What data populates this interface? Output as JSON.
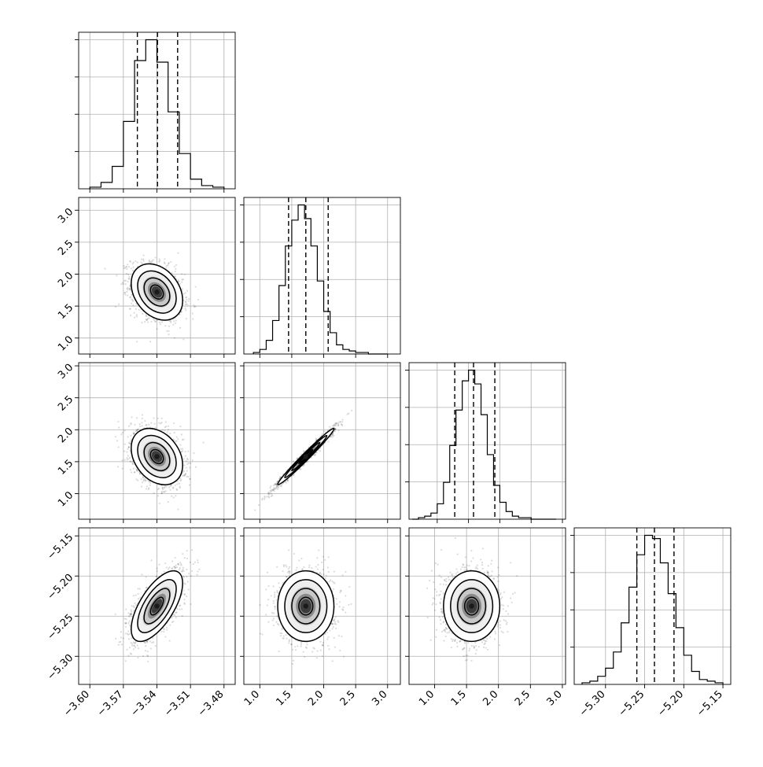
{
  "figure": {
    "dims": 4,
    "gridlines": true,
    "colors": {
      "line": "#000000",
      "grid": "#b0b0b0",
      "scatter": "#000000",
      "fill_light": "#ffffff",
      "fill_dark": "#1a1a1a"
    }
  },
  "chart_data": [
    {
      "id": "hist-p1",
      "type": "histogram",
      "xlim": [
        -3.61,
        -3.47
      ],
      "xticks": [
        -3.6,
        -3.57,
        -3.54,
        -3.51,
        -3.48
      ],
      "xtick_labels": [
        "−3.60",
        "−3.57",
        "−3.54",
        "−3.51",
        "−3.48"
      ],
      "bin_edges": [
        -3.6,
        -3.59,
        -3.58,
        -3.57,
        -3.56,
        -3.55,
        -3.54,
        -3.53,
        -3.52,
        -3.51,
        -3.5,
        -3.49,
        -3.48
      ],
      "counts": [
        1,
        4,
        14,
        42,
        80,
        93,
        79,
        48,
        22,
        6,
        2,
        1
      ],
      "quantile_lines": [
        -3.5575,
        -3.5395,
        -3.5215
      ]
    },
    {
      "id": "hist-p2",
      "type": "histogram",
      "xlim": [
        0.75,
        3.2
      ],
      "xticks": [
        1.0,
        1.5,
        2.0,
        2.5,
        3.0
      ],
      "xtick_labels": [
        "1.0",
        "1.5",
        "2.0",
        "2.5",
        "3.0"
      ],
      "bin_edges": [
        0.9,
        1.0,
        1.1,
        1.2,
        1.3,
        1.4,
        1.5,
        1.6,
        1.7,
        1.8,
        1.9,
        2.0,
        2.1,
        2.2,
        2.3,
        2.4,
        2.5,
        2.6,
        2.7,
        2.8,
        2.9,
        3.0
      ],
      "counts": [
        1,
        3,
        9,
        22,
        45,
        71,
        88,
        98,
        89,
        71,
        48,
        28,
        14,
        6,
        3,
        2,
        1,
        1,
        0,
        0,
        0
      ],
      "quantile_lines": [
        1.45,
        1.72,
        2.07
      ]
    },
    {
      "id": "hist-p3",
      "type": "histogram",
      "xlim": [
        0.55,
        3.05
      ],
      "xticks": [
        1.0,
        1.5,
        2.0,
        2.5,
        3.0
      ],
      "xtick_labels": [
        "1.0",
        "1.5",
        "2.0",
        "2.5",
        "3.0"
      ],
      "bin_edges": [
        0.6,
        0.7,
        0.8,
        0.9,
        1.0,
        1.1,
        1.2,
        1.3,
        1.4,
        1.5,
        1.6,
        1.7,
        1.8,
        1.9,
        2.0,
        2.1,
        2.2,
        2.3,
        2.4,
        2.5,
        2.6,
        2.7,
        2.8,
        2.9
      ],
      "counts": [
        0,
        1,
        2,
        4,
        10,
        24,
        48,
        71,
        90,
        97,
        88,
        68,
        42,
        22,
        11,
        5,
        2,
        1,
        1,
        0,
        0,
        0,
        0
      ],
      "quantile_lines": [
        1.28,
        1.58,
        1.92
      ]
    },
    {
      "id": "hist-p4",
      "type": "histogram",
      "xlim": [
        -5.34,
        -5.14
      ],
      "xticks": [
        -5.3,
        -5.25,
        -5.2,
        -5.15
      ],
      "xtick_labels": [
        "−5.30",
        "−5.25",
        "−5.20",
        "−5.15"
      ],
      "bin_edges": [
        -5.33,
        -5.32,
        -5.31,
        -5.3,
        -5.29,
        -5.28,
        -5.27,
        -5.26,
        -5.25,
        -5.24,
        -5.23,
        -5.22,
        -5.21,
        -5.2,
        -5.19,
        -5.18,
        -5.17,
        -5.16,
        -5.15
      ],
      "counts": [
        1,
        2,
        5,
        10,
        20,
        38,
        60,
        80,
        92,
        90,
        75,
        56,
        35,
        18,
        8,
        3,
        2,
        1
      ],
      "quantile_lines": [
        -5.26,
        -5.2375,
        -5.2125
      ]
    },
    {
      "id": "scatter-p1-p2",
      "type": "scatter",
      "xdim": 0,
      "ydim": 1,
      "xlim": [
        -3.61,
        -3.47
      ],
      "ylim": [
        0.75,
        3.2
      ],
      "yticks": [
        1.0,
        1.5,
        2.0,
        2.5,
        3.0
      ],
      "ytick_labels": [
        "1.0",
        "1.5",
        "2.0",
        "2.5",
        "3.0"
      ],
      "center": [
        -3.54,
        1.72
      ],
      "sigma": [
        0.0115,
        0.22
      ],
      "corr": -0.3
    },
    {
      "id": "scatter-p1-p3",
      "type": "scatter",
      "xdim": 0,
      "ydim": 2,
      "xlim": [
        -3.61,
        -3.47
      ],
      "ylim": [
        0.6,
        3.05
      ],
      "yticks": [
        1.0,
        1.5,
        2.0,
        2.5,
        3.0
      ],
      "ytick_labels": [
        "1.0",
        "1.5",
        "2.0",
        "2.5",
        "3.0"
      ],
      "center": [
        -3.54,
        1.58
      ],
      "sigma": [
        0.0115,
        0.22
      ],
      "corr": -0.3
    },
    {
      "id": "scatter-p2-p3",
      "type": "scatter",
      "xdim": 1,
      "ydim": 2,
      "xlim": [
        0.75,
        3.2
      ],
      "ylim": [
        0.6,
        3.05
      ],
      "center": [
        1.72,
        1.58
      ],
      "sigma": [
        0.22,
        0.22
      ],
      "corr": 0.985
    },
    {
      "id": "scatter-p1-p4",
      "type": "scatter",
      "xdim": 0,
      "ydim": 3,
      "xlim": [
        -3.61,
        -3.47
      ],
      "ylim": [
        -5.335,
        -5.14
      ],
      "yticks": [
        -5.3,
        -5.25,
        -5.2,
        -5.15
      ],
      "ytick_labels": [
        "−5.30",
        "−5.25",
        "−5.20",
        "−5.15"
      ],
      "center": [
        -3.54,
        -5.2375
      ],
      "sigma": [
        0.0115,
        0.022
      ],
      "corr": 0.65
    },
    {
      "id": "scatter-p2-p4",
      "type": "scatter",
      "xdim": 1,
      "ydim": 3,
      "xlim": [
        0.75,
        3.2
      ],
      "ylim": [
        -5.335,
        -5.14
      ],
      "center": [
        1.72,
        -5.2375
      ],
      "sigma": [
        0.22,
        0.022
      ],
      "corr": 0.0
    },
    {
      "id": "scatter-p3-p4",
      "type": "scatter",
      "xdim": 2,
      "ydim": 3,
      "xlim": [
        0.6,
        3.05
      ],
      "ylim": [
        -5.335,
        -5.14
      ],
      "center": [
        1.58,
        -5.2375
      ],
      "sigma": [
        0.22,
        0.022
      ],
      "corr": 0.0
    }
  ]
}
